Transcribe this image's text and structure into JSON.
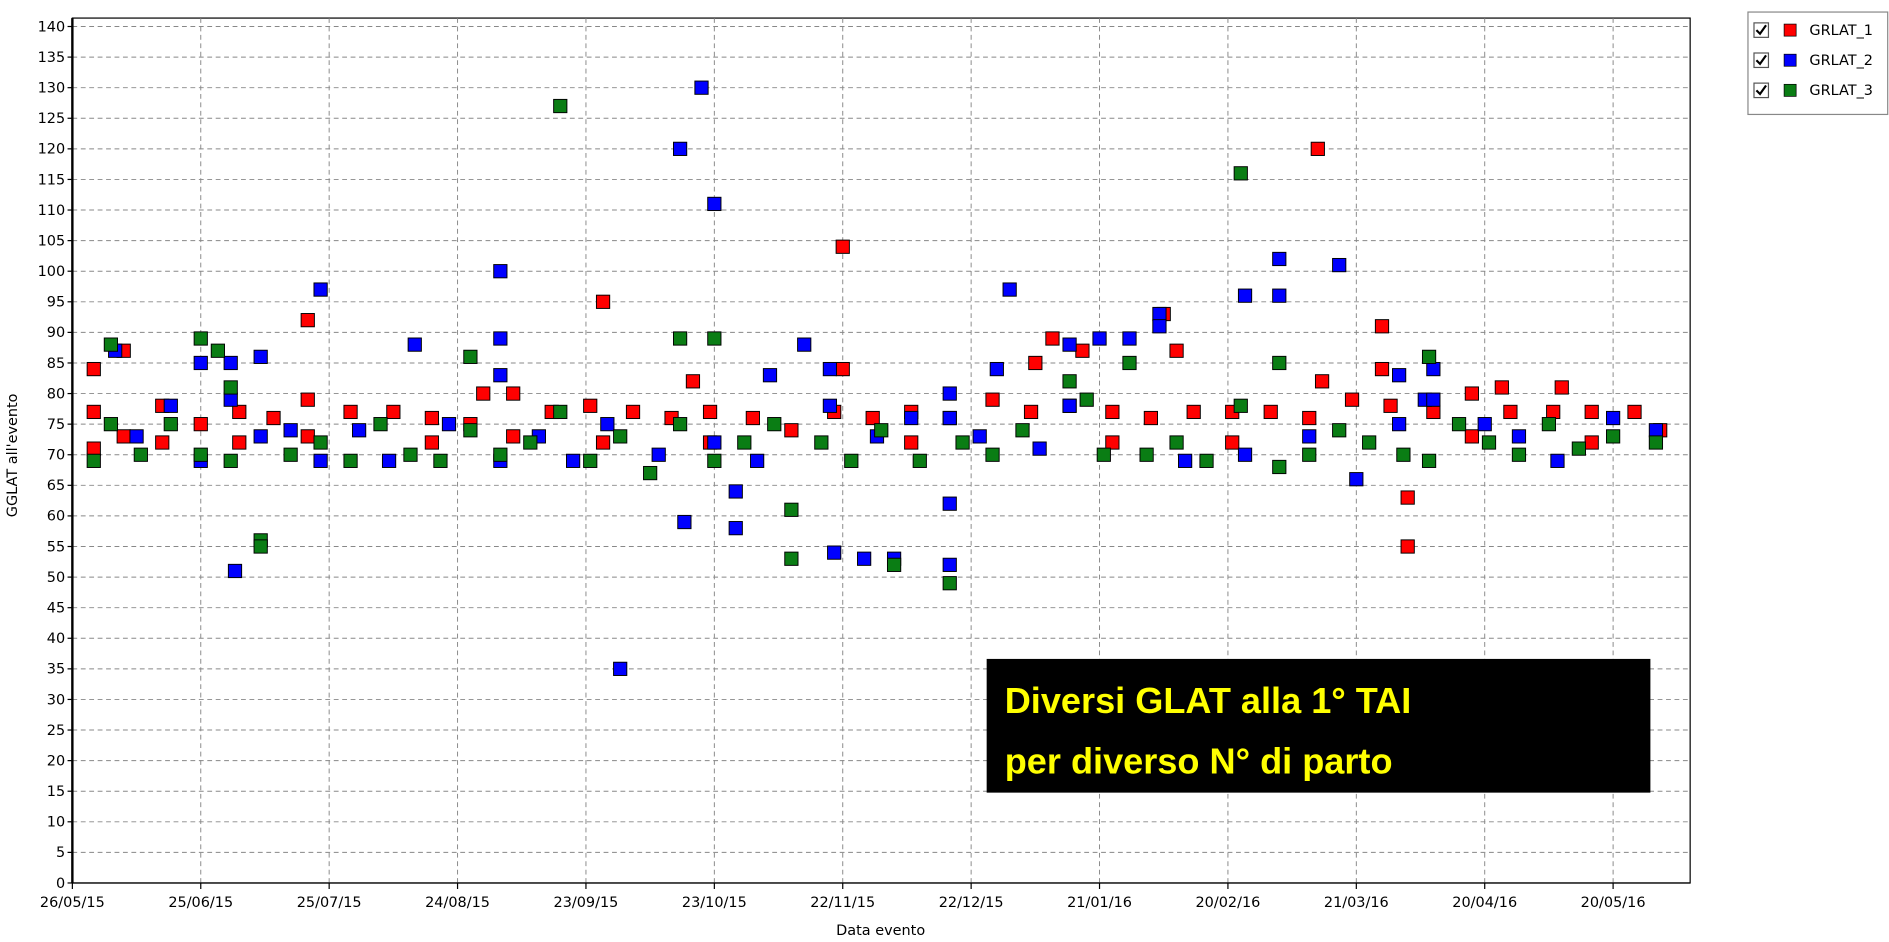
{
  "chart_data": {
    "type": "scatter",
    "y_label": "GGLAT all'evento",
    "x_label": "Data evento",
    "annotation": [
      "Diversi GLAT alla 1° TAI",
      "per diverso N° di parto"
    ],
    "xlim": [
      "2015-05-26",
      "2016-06-07"
    ],
    "xticks": [
      {
        "value": "2015-05-26",
        "label": "26/05/15"
      },
      {
        "value": "2015-06-25",
        "label": "25/06/15"
      },
      {
        "value": "2015-07-25",
        "label": "25/07/15"
      },
      {
        "value": "2015-08-24",
        "label": "24/08/15"
      },
      {
        "value": "2015-09-23",
        "label": "23/09/15"
      },
      {
        "value": "2015-10-23",
        "label": "23/10/15"
      },
      {
        "value": "2015-11-22",
        "label": "22/11/15"
      },
      {
        "value": "2015-12-22",
        "label": "22/12/15"
      },
      {
        "value": "2016-01-21",
        "label": "21/01/16"
      },
      {
        "value": "2016-02-20",
        "label": "20/02/16"
      },
      {
        "value": "2016-03-21",
        "label": "21/03/16"
      },
      {
        "value": "2016-04-20",
        "label": "20/04/16"
      },
      {
        "value": "2016-05-20",
        "label": "20/05/16"
      }
    ],
    "ylim": [
      0,
      140
    ],
    "yticks": [
      0,
      5,
      10,
      15,
      20,
      25,
      30,
      35,
      40,
      45,
      50,
      55,
      60,
      65,
      70,
      75,
      80,
      85,
      90,
      95,
      100,
      105,
      110,
      115,
      120,
      125,
      130,
      135,
      140
    ],
    "grid": true,
    "series": [
      {
        "name": "GRLAT_1",
        "color": "#ff0000",
        "x": [
          "2015-05-31",
          "2015-05-31",
          "2015-05-31",
          "2015-06-07",
          "2015-06-07",
          "2015-06-16",
          "2015-06-16",
          "2015-06-25",
          "2015-07-04",
          "2015-07-04",
          "2015-07-12",
          "2015-07-20",
          "2015-07-20",
          "2015-07-20",
          "2015-07-30",
          "2015-08-09",
          "2015-08-18",
          "2015-08-18",
          "2015-08-27",
          "2015-08-30",
          "2015-09-06",
          "2015-09-06",
          "2015-09-15",
          "2015-09-24",
          "2015-09-27",
          "2015-09-27",
          "2015-10-04",
          "2015-10-13",
          "2015-10-18",
          "2015-10-22",
          "2015-10-22",
          "2015-11-01",
          "2015-11-10",
          "2015-11-20",
          "2015-11-22",
          "2015-11-22",
          "2015-11-29",
          "2015-12-08",
          "2015-12-08",
          "2015-12-17",
          "2015-12-27",
          "2016-01-05",
          "2016-01-06",
          "2016-01-10",
          "2016-01-14",
          "2016-01-17",
          "2016-01-24",
          "2016-01-24",
          "2016-02-02",
          "2016-02-05",
          "2016-02-08",
          "2016-02-12",
          "2016-02-21",
          "2016-02-21",
          "2016-03-01",
          "2016-03-10",
          "2016-03-12",
          "2016-03-13",
          "2016-03-20",
          "2016-03-27",
          "2016-03-27",
          "2016-03-29",
          "2016-04-02",
          "2016-04-02",
          "2016-04-08",
          "2016-04-17",
          "2016-04-17",
          "2016-04-24",
          "2016-04-26",
          "2016-05-06",
          "2016-05-08",
          "2016-05-15",
          "2016-05-15",
          "2016-05-25",
          "2016-05-31"
        ],
        "values": [
          84,
          77,
          71,
          87,
          73,
          78,
          72,
          75,
          77,
          72,
          76,
          92,
          79,
          73,
          77,
          77,
          76,
          72,
          75,
          80,
          80,
          73,
          77,
          78,
          95,
          72,
          77,
          76,
          82,
          77,
          72,
          76,
          74,
          77,
          104,
          84,
          76,
          77,
          72,
          76,
          79,
          77,
          85,
          89,
          78,
          87,
          77,
          72,
          76,
          93,
          87,
          77,
          77,
          72,
          77,
          76,
          120,
          82,
          79,
          91,
          84,
          78,
          63,
          55,
          77,
          80,
          73,
          81,
          77,
          77,
          81,
          77,
          72,
          77,
          74
        ]
      },
      {
        "name": "GRLAT_2",
        "color": "#0000ff",
        "x": [
          "2015-06-05",
          "2015-06-10",
          "2015-06-18",
          "2015-06-25",
          "2015-06-25",
          "2015-07-02",
          "2015-07-02",
          "2015-07-03",
          "2015-07-09",
          "2015-07-09",
          "2015-07-16",
          "2015-07-23",
          "2015-07-23",
          "2015-08-01",
          "2015-08-08",
          "2015-08-14",
          "2015-08-22",
          "2015-09-03",
          "2015-09-03",
          "2015-09-03",
          "2015-09-03",
          "2015-09-12",
          "2015-09-20",
          "2015-09-28",
          "2015-10-01",
          "2015-10-10",
          "2015-10-15",
          "2015-10-16",
          "2015-10-20",
          "2015-10-23",
          "2015-10-23",
          "2015-10-28",
          "2015-10-28",
          "2015-11-02",
          "2015-11-05",
          "2015-11-13",
          "2015-11-19",
          "2015-11-19",
          "2015-11-20",
          "2015-11-27",
          "2015-11-30",
          "2015-12-04",
          "2015-12-08",
          "2015-12-17",
          "2015-12-17",
          "2015-12-17",
          "2015-12-17",
          "2015-12-24",
          "2015-12-28",
          "2015-12-31",
          "2016-01-07",
          "2016-01-14",
          "2016-01-14",
          "2016-01-21",
          "2016-01-28",
          "2016-02-04",
          "2016-02-04",
          "2016-02-10",
          "2016-02-24",
          "2016-02-24",
          "2016-03-03",
          "2016-03-03",
          "2016-03-10",
          "2016-03-17",
          "2016-03-21",
          "2016-03-31",
          "2016-03-31",
          "2016-04-06",
          "2016-04-08",
          "2016-04-08",
          "2016-04-20",
          "2016-04-28",
          "2016-05-07",
          "2016-05-20",
          "2016-05-30"
        ],
        "values": [
          87,
          73,
          78,
          85,
          69,
          85,
          79,
          51,
          86,
          73,
          74,
          97,
          69,
          74,
          69,
          88,
          75,
          100,
          89,
          83,
          69,
          73,
          69,
          75,
          35,
          70,
          120,
          59,
          130,
          111,
          72,
          64,
          58,
          69,
          83,
          88,
          84,
          78,
          54,
          53,
          73,
          53,
          76,
          80,
          62,
          52,
          76,
          73,
          84,
          97,
          71,
          88,
          78,
          89,
          89,
          93,
          91,
          69,
          96,
          70,
          102,
          96,
          73,
          101,
          66,
          83,
          75,
          79,
          84,
          79,
          75,
          73,
          69,
          76,
          74
        ]
      },
      {
        "name": "GRLAT_3",
        "color": "#0a7d14",
        "x": [
          "2015-05-31",
          "2015-06-04",
          "2015-06-04",
          "2015-06-11",
          "2015-06-18",
          "2015-06-25",
          "2015-06-25",
          "2015-06-29",
          "2015-07-02",
          "2015-07-02",
          "2015-07-09",
          "2015-07-09",
          "2015-07-16",
          "2015-07-23",
          "2015-07-30",
          "2015-08-06",
          "2015-08-13",
          "2015-08-20",
          "2015-08-27",
          "2015-08-27",
          "2015-09-03",
          "2015-09-10",
          "2015-09-17",
          "2015-09-17",
          "2015-09-24",
          "2015-10-01",
          "2015-10-08",
          "2015-10-15",
          "2015-10-15",
          "2015-10-23",
          "2015-10-23",
          "2015-10-30",
          "2015-11-06",
          "2015-11-10",
          "2015-11-10",
          "2015-11-17",
          "2015-11-24",
          "2015-12-01",
          "2015-12-04",
          "2015-12-10",
          "2015-12-17",
          "2015-12-20",
          "2015-12-27",
          "2016-01-03",
          "2016-01-14",
          "2016-01-18",
          "2016-01-22",
          "2016-01-28",
          "2016-02-01",
          "2016-02-08",
          "2016-02-15",
          "2016-02-23",
          "2016-02-23",
          "2016-03-03",
          "2016-03-03",
          "2016-03-10",
          "2016-03-17",
          "2016-03-24",
          "2016-04-01",
          "2016-04-07",
          "2016-04-07",
          "2016-04-14",
          "2016-04-21",
          "2016-04-28",
          "2016-05-05",
          "2016-05-12",
          "2016-05-20",
          "2016-05-30"
        ],
        "values": [
          69,
          88,
          75,
          70,
          75,
          89,
          70,
          87,
          81,
          69,
          56,
          55,
          70,
          72,
          69,
          75,
          70,
          69,
          86,
          74,
          70,
          72,
          127,
          77,
          69,
          73,
          67,
          89,
          75,
          89,
          69,
          72,
          75,
          61,
          53,
          72,
          69,
          74,
          52,
          69,
          49,
          72,
          70,
          74,
          82,
          79,
          70,
          85,
          70,
          72,
          69,
          116,
          78,
          85,
          68,
          70,
          74,
          72,
          70,
          86,
          69,
          75,
          72,
          70,
          75,
          71,
          73,
          72
        ]
      }
    ]
  }
}
